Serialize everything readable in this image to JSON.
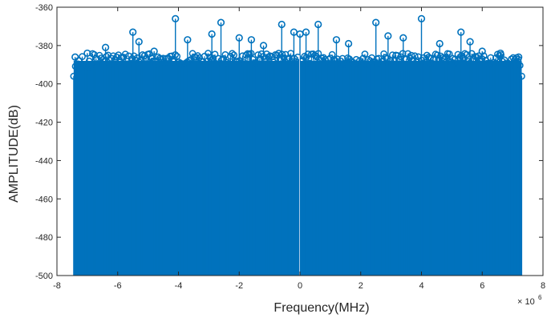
{
  "chart_data": {
    "type": "stem",
    "xlabel": "Frequency(MHz)",
    "ylabel": "AMPLITUDE(dB)",
    "x_exponent_base": "× 10",
    "x_exponent_power": "6",
    "xlim": [
      -8,
      8
    ],
    "ylim": [
      -500,
      -360
    ],
    "xticks": [
      -8,
      -6,
      -4,
      -2,
      0,
      2,
      4,
      6,
      8
    ],
    "xtick_labels": [
      "-8",
      "-6",
      "-4",
      "-2",
      "0",
      "2",
      "4",
      "6",
      "8"
    ],
    "yticks": [
      -360,
      -380,
      -400,
      -420,
      -440,
      -460,
      -480,
      -500
    ],
    "ytick_labels": [
      "-360",
      "-380",
      "-400",
      "-420",
      "-440",
      "-460",
      "-480",
      "-500"
    ],
    "grid": false,
    "baseline": -500,
    "x_data_range": [
      -7.45,
      7.3
    ],
    "marker": "circle",
    "colors": {
      "series": "#0072BD",
      "axis": "#262626",
      "background": "#ffffff"
    },
    "series": [
      {
        "notable_peaks": [
          {
            "x": -7.4,
            "y": -386
          },
          {
            "x": -7.0,
            "y": -384
          },
          {
            "x": -6.4,
            "y": -381
          },
          {
            "x": -5.5,
            "y": -373
          },
          {
            "x": -5.3,
            "y": -378
          },
          {
            "x": -4.8,
            "y": -383
          },
          {
            "x": -4.1,
            "y": -366
          },
          {
            "x": -3.7,
            "y": -377
          },
          {
            "x": -2.9,
            "y": -374
          },
          {
            "x": -2.6,
            "y": -368
          },
          {
            "x": -2.0,
            "y": -376
          },
          {
            "x": -1.6,
            "y": -377
          },
          {
            "x": -1.2,
            "y": -380
          },
          {
            "x": -0.6,
            "y": -369
          },
          {
            "x": -0.2,
            "y": -373
          },
          {
            "x": 0.0,
            "y": -374
          },
          {
            "x": 0.2,
            "y": -373
          },
          {
            "x": 0.6,
            "y": -369
          },
          {
            "x": 1.2,
            "y": -377
          },
          {
            "x": 1.6,
            "y": -379
          },
          {
            "x": 2.5,
            "y": -368
          },
          {
            "x": 2.9,
            "y": -375
          },
          {
            "x": 3.4,
            "y": -376
          },
          {
            "x": 4.0,
            "y": -366
          },
          {
            "x": 4.6,
            "y": -379
          },
          {
            "x": 5.3,
            "y": -373
          },
          {
            "x": 5.6,
            "y": -378
          },
          {
            "x": 6.0,
            "y": -383
          },
          {
            "x": 6.6,
            "y": -384
          },
          {
            "x": 7.2,
            "y": -386
          }
        ]
      }
    ]
  }
}
